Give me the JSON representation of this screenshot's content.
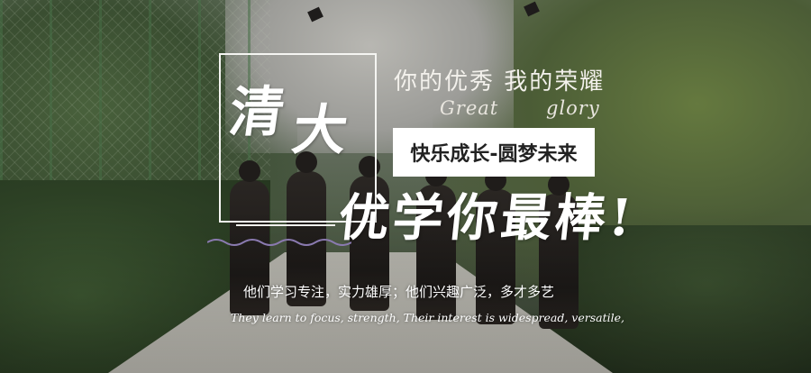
{
  "banner": {
    "title_chars": [
      "清",
      "大"
    ],
    "top_line": "你的优秀  我的荣耀",
    "english_words": [
      "Great",
      "glory"
    ],
    "tag": "快乐成长-圆梦未来",
    "slogan": "优学你最棒!",
    "subtitle_cn": "他们学习专注，实力雄厚；他们兴趣广泛，多才多艺",
    "subtitle_en": "They learn to focus, strength, Their interest is widespread, versatile,",
    "colors": {
      "text": "#ffffff",
      "tag_background": "#ffffff",
      "tag_text": "#222222",
      "wave": "#8a7ab0"
    }
  }
}
